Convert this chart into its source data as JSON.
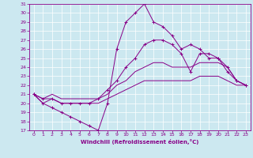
{
  "xlabel": "Windchill (Refroidissement éolien,°C)",
  "xlim": [
    -0.5,
    23.5
  ],
  "ylim": [
    17,
    31
  ],
  "xticks": [
    0,
    1,
    2,
    3,
    4,
    5,
    6,
    7,
    8,
    9,
    10,
    11,
    12,
    13,
    14,
    15,
    16,
    17,
    18,
    19,
    20,
    21,
    22,
    23
  ],
  "yticks": [
    17,
    18,
    19,
    20,
    21,
    22,
    23,
    24,
    25,
    26,
    27,
    28,
    29,
    30,
    31
  ],
  "background_color": "#cce8f0",
  "line_color": "#880088",
  "grid_color": "#ffffff",
  "lines": [
    {
      "markers": false,
      "x": [
        0,
        1,
        2,
        3,
        4,
        5,
        6,
        7,
        8,
        9,
        10,
        11,
        12,
        13,
        14,
        15,
        16,
        17,
        18,
        19,
        20,
        21,
        22,
        23
      ],
      "y": [
        21,
        20,
        20.5,
        20,
        20,
        20,
        20,
        20,
        20.5,
        21,
        21.5,
        22,
        22.5,
        22.5,
        22.5,
        22.5,
        22.5,
        22.5,
        23,
        23,
        23,
        22.5,
        22,
        22
      ]
    },
    {
      "markers": false,
      "x": [
        0,
        1,
        2,
        3,
        4,
        5,
        6,
        7,
        8,
        9,
        10,
        11,
        12,
        13,
        14,
        15,
        16,
        17,
        18,
        19,
        20,
        21,
        22,
        23
      ],
      "y": [
        21,
        20.5,
        21,
        20.5,
        20.5,
        20.5,
        20.5,
        20.5,
        21,
        22,
        22.5,
        23.5,
        24,
        24.5,
        24.5,
        24,
        24,
        24,
        24.5,
        24.5,
        24.5,
        24,
        22.5,
        22
      ]
    },
    {
      "markers": true,
      "x": [
        0,
        1,
        2,
        3,
        4,
        5,
        6,
        7,
        8,
        9,
        10,
        11,
        12,
        13,
        14,
        15,
        16,
        17,
        18,
        19,
        20,
        21,
        22,
        23
      ],
      "y": [
        21,
        20,
        19.5,
        19,
        18.5,
        18,
        17.5,
        17,
        20,
        26,
        29,
        30,
        31,
        29,
        28.5,
        27.5,
        26,
        26.5,
        26,
        25,
        25,
        23.5,
        22.5,
        22
      ]
    },
    {
      "markers": true,
      "x": [
        0,
        1,
        2,
        3,
        4,
        5,
        6,
        7,
        8,
        9,
        10,
        11,
        12,
        13,
        14,
        15,
        16,
        17,
        18,
        19,
        20,
        21,
        22,
        23
      ],
      "y": [
        21,
        20.5,
        20.5,
        20,
        20,
        20,
        20,
        20.5,
        21.5,
        22.5,
        24,
        25,
        26.5,
        27,
        27,
        26.5,
        25.5,
        23.5,
        25.5,
        25.5,
        25,
        24,
        22.5,
        22
      ]
    }
  ]
}
